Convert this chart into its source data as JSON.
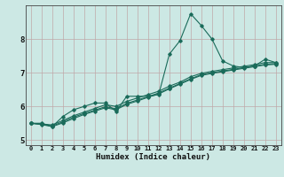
{
  "title": "",
  "xlabel": "Humidex (Indice chaleur)",
  "ylabel": "",
  "bg_color": "#cce8e4",
  "line_color": "#1a6b5a",
  "grid_color_major": "#c0a8a8",
  "xlim": [
    -0.5,
    23.5
  ],
  "ylim": [
    4.85,
    9.0
  ],
  "xticks": [
    0,
    1,
    2,
    3,
    4,
    5,
    6,
    7,
    8,
    9,
    10,
    11,
    12,
    13,
    14,
    15,
    16,
    17,
    18,
    19,
    20,
    21,
    22,
    23
  ],
  "yticks": [
    5,
    6,
    7,
    8
  ],
  "line1_x": [
    0,
    1,
    2,
    3,
    4,
    5,
    6,
    7,
    8,
    9,
    10,
    11,
    12,
    13,
    14,
    15,
    16,
    17,
    18,
    19,
    20,
    21,
    22,
    23
  ],
  "line1_y": [
    5.5,
    5.5,
    5.4,
    5.7,
    5.9,
    6.0,
    6.1,
    6.1,
    5.85,
    6.3,
    6.3,
    6.3,
    6.35,
    7.55,
    7.95,
    8.75,
    8.4,
    8.0,
    7.35,
    7.2,
    7.15,
    7.2,
    7.4,
    7.3
  ],
  "line2_x": [
    0,
    1,
    2,
    3,
    4,
    5,
    6,
    7,
    8,
    9,
    10,
    11,
    12,
    13,
    14,
    15,
    16,
    17,
    18,
    19,
    20,
    21,
    22,
    23
  ],
  "line2_y": [
    5.5,
    5.48,
    5.45,
    5.58,
    5.72,
    5.83,
    5.94,
    6.05,
    6.0,
    6.15,
    6.25,
    6.35,
    6.45,
    6.6,
    6.72,
    6.88,
    6.98,
    7.04,
    7.09,
    7.14,
    7.19,
    7.24,
    7.3,
    7.3
  ],
  "line3_x": [
    0,
    1,
    2,
    3,
    4,
    5,
    6,
    7,
    8,
    9,
    10,
    11,
    12,
    13,
    14,
    15,
    16,
    17,
    18,
    19,
    20,
    21,
    22,
    23
  ],
  "line3_y": [
    5.5,
    5.47,
    5.42,
    5.54,
    5.68,
    5.79,
    5.89,
    5.99,
    5.93,
    6.09,
    6.19,
    6.29,
    6.4,
    6.54,
    6.68,
    6.82,
    6.94,
    7.0,
    7.05,
    7.1,
    7.15,
    7.2,
    7.25,
    7.27
  ],
  "line4_x": [
    0,
    1,
    2,
    3,
    4,
    5,
    6,
    7,
    8,
    9,
    10,
    11,
    12,
    13,
    14,
    15,
    16,
    17,
    18,
    19,
    20,
    21,
    22,
    23
  ],
  "line4_y": [
    5.5,
    5.46,
    5.4,
    5.51,
    5.64,
    5.76,
    5.86,
    5.96,
    5.9,
    6.06,
    6.16,
    6.27,
    6.37,
    6.52,
    6.66,
    6.8,
    6.92,
    6.98,
    7.03,
    7.08,
    7.13,
    7.18,
    7.23,
    7.25
  ]
}
